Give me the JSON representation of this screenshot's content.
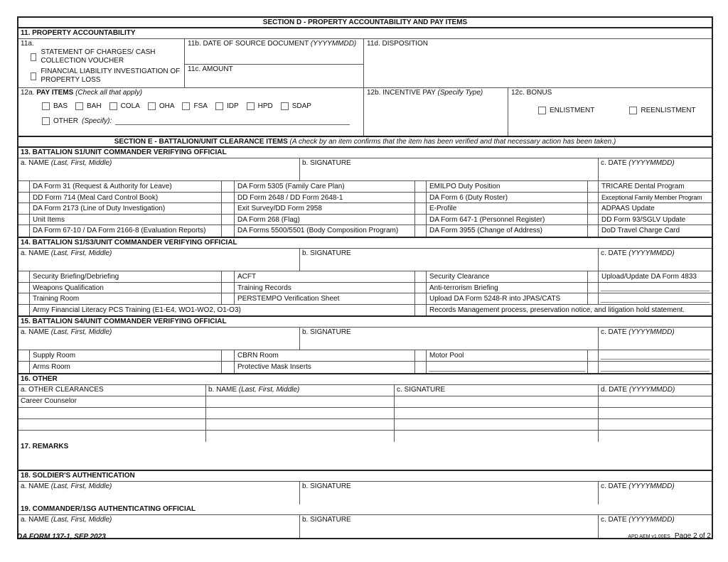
{
  "section_d": {
    "title": "SECTION D - PROPERTY ACCOUNTABILITY AND PAY ITEMS",
    "item11": {
      "title": "11. PROPERTY ACCOUNTABILITY",
      "a_label": "11a.",
      "a_options": [
        "STATEMENT OF CHARGES/ CASH COLLECTION VOUCHER",
        "FINANCIAL LIABILITY INVESTIGATION OF PROPERTY LOSS"
      ],
      "b_label": "11b. DATE OF SOURCE DOCUMENT",
      "b_hint": "(YYYYMMDD)",
      "c_label": "11c. AMOUNT",
      "d_label": "11d. DISPOSITION"
    },
    "item12": {
      "a_num": "12a.",
      "a_label": "PAY ITEMS",
      "a_hint": "(Check all that apply)",
      "pay_items": [
        "BAS",
        "BAH",
        "COLA",
        "OHA",
        "FSA",
        "IDP",
        "HPD",
        "SDAP"
      ],
      "other_label": "OTHER",
      "other_hint": "(Specify):",
      "other_value": "",
      "b_label": "12b. INCENTIVE PAY",
      "b_hint": "(Specify Type)",
      "c_label": "12c. BONUS",
      "bonus_options": [
        "ENLISTMENT",
        "REENLISTMENT"
      ]
    }
  },
  "section_e": {
    "title": "SECTION E - BATTALION/UNIT CLEARANCE ITEMS",
    "note": "(A check by an item confirms that the item has been verified and that necessary action has been taken.)"
  },
  "fields": {
    "name": "a. NAME",
    "name_hint": "(Last, First, Middle)",
    "signature": "b. SIGNATURE",
    "date": "c. DATE",
    "date_hint": "(YYYYMMDD)"
  },
  "item13": {
    "title": "13. BATTALION S1/UNIT COMMANDER VERIFYING OFFICIAL",
    "rows": [
      [
        {
          "label": "DA Form 31 (Request & Authority for Leave)"
        },
        {
          "label": "DA Form 5305 (Family Care Plan)"
        },
        {
          "label": "EMILPO Duty Position"
        },
        {
          "label": "TRICARE Dental Program"
        }
      ],
      [
        {
          "label": "DD Form 714 (Meal Card Control Book)"
        },
        {
          "label": "DD Form 2648 / DD Form 2648-1"
        },
        {
          "label": "DA Form 6 (Duty Roster)"
        },
        {
          "label": "Exceptional Family Member Program",
          "small": true
        }
      ],
      [
        {
          "label": "DA Form 2173 (Line of Duty Investigation)"
        },
        {
          "label": "Exit Survey/DD Form 2958"
        },
        {
          "label": "E-Profile"
        },
        {
          "label": "ADPAAS Update"
        }
      ],
      [
        {
          "label": "Unit Items"
        },
        {
          "label": "DA Form 268 (Flag)"
        },
        {
          "label": "DA Form 647-1 (Personnel Register)"
        },
        {
          "label": "DD Form 93/SGLV Update"
        }
      ],
      [
        {
          "label": "DA Form 67-10 / DA Form 2166-8 (Evaluation Reports)"
        },
        {
          "label": "DA Forms 5500/5501 (Body Composition Program)"
        },
        {
          "label": "DA Form 3955 (Change of Address)"
        },
        {
          "label": "DoD Travel Charge Card"
        }
      ]
    ]
  },
  "item14": {
    "title": "14. BATTALION S1/S3/UNIT COMMANDER VERIFYING OFFICIAL",
    "rows": [
      [
        {
          "label": "Security Briefing/Debriefing"
        },
        {
          "label": "ACFT"
        },
        {
          "label": "Security Clearance"
        },
        {
          "label": "Upload/Update DA Form 4833"
        }
      ],
      [
        {
          "label": "Weapons Qualification"
        },
        {
          "label": "Training Records"
        },
        {
          "label": "Anti-terrorism Briefing"
        },
        {
          "label": "",
          "blank": true
        }
      ],
      [
        {
          "label": "Training Room"
        },
        {
          "label": "PERSTEMPO Verification Sheet"
        },
        {
          "label": "Upload DA Form 5248-R into JPAS/CATS"
        },
        {
          "label": "",
          "blank": true
        }
      ],
      [
        {
          "label": "Army Financial Literacy PCS Training (E1-E4, WO1-WO2, O1-O3)",
          "span": 2
        },
        {
          "label": "Records Management process, preservation notice, and litigation hold statement.",
          "span": 2
        }
      ]
    ]
  },
  "item15": {
    "title": "15. BATTALION S4/UNIT COMMANDER VERIFYING OFFICIAL",
    "rows": [
      [
        {
          "label": "Supply Room"
        },
        {
          "label": "CBRN Room"
        },
        {
          "label": "Motor Pool"
        },
        {
          "label": "",
          "blank": true
        }
      ],
      [
        {
          "label": "Arms Room"
        },
        {
          "label": "Protective Mask Inserts"
        },
        {
          "label": "",
          "blank": true
        },
        {
          "label": "",
          "blank": true
        }
      ]
    ]
  },
  "item16": {
    "title": "16. OTHER",
    "col_a": "a. OTHER CLEARANCES",
    "col_b": "b. NAME",
    "col_b_hint": "(Last, First, Middle)",
    "col_c": "c. SIGNATURE",
    "col_d": "d. DATE",
    "col_d_hint": "(YYYYMMDD)",
    "rows": [
      "Career Counselor",
      "",
      "",
      ""
    ]
  },
  "item17": {
    "title": "17. REMARKS",
    "value": ""
  },
  "item18": {
    "title": "18. SOLDIER'S AUTHENTICATION"
  },
  "item19": {
    "title": "19. COMMANDER/1SG AUTHENTICATING OFFICIAL"
  },
  "footer": {
    "form_id": "DA FORM 137-1, SEP 2023",
    "version": "APD AEM v1.00ES",
    "page": "Page 2 of 2"
  }
}
